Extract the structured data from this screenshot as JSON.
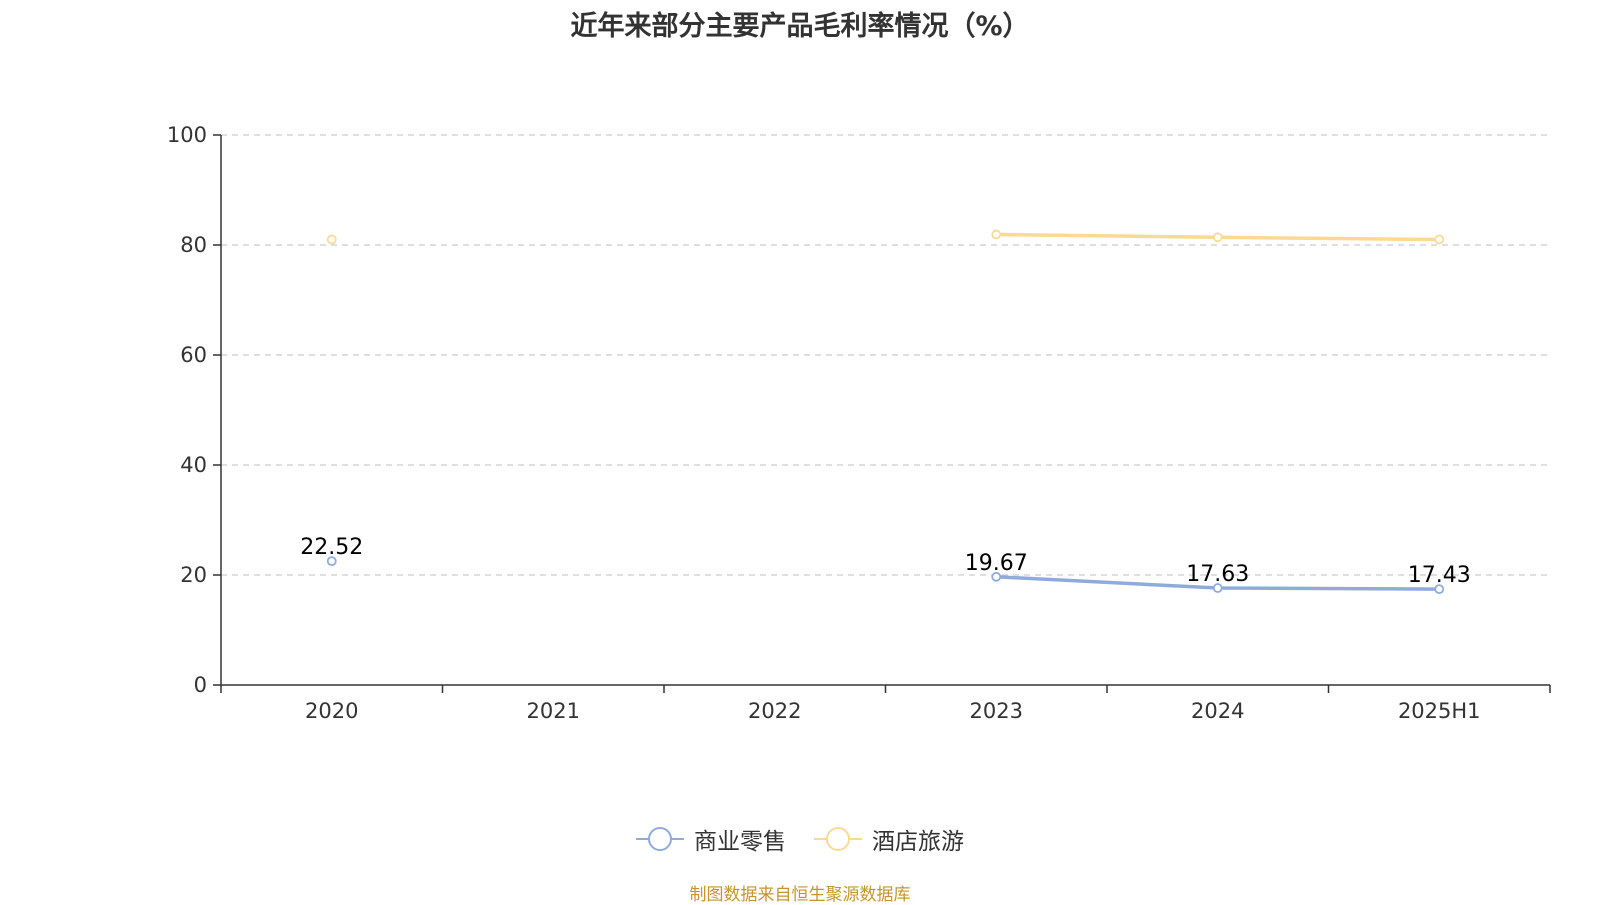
{
  "chart_data": {
    "type": "line",
    "title": "近年来部分主要产品毛利率情况（%）",
    "categories": [
      "2020",
      "2021",
      "2022",
      "2023",
      "2024",
      "2025H1"
    ],
    "ylim": [
      0,
      100
    ],
    "yticks": [
      "0",
      "20",
      "40",
      "60",
      "80",
      "100"
    ],
    "grid": true,
    "legend_position": "bottom",
    "series": [
      {
        "name": "商业零售",
        "color": "#8fabdb",
        "values": [
          22.52,
          null,
          null,
          19.67,
          17.63,
          17.43
        ],
        "labels": [
          "22.52",
          "",
          "",
          "19.67",
          "17.63",
          "17.43"
        ]
      },
      {
        "name": "酒店旅游",
        "color": "#fbd995",
        "values": [
          81.0,
          null,
          null,
          81.9,
          81.4,
          81.0
        ],
        "labels": [
          "",
          "",
          "",
          "",
          "",
          ""
        ]
      }
    ]
  },
  "footer": {
    "source": "制图数据来自恒生聚源数据库"
  }
}
